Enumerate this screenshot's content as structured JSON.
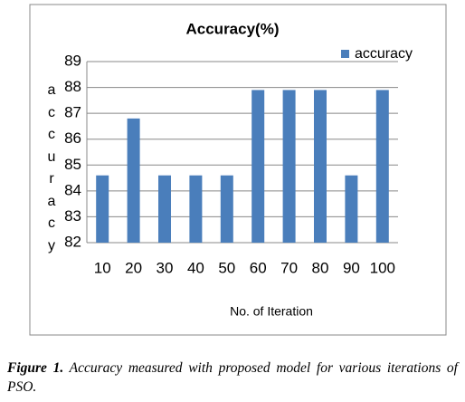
{
  "chart_data": {
    "type": "bar",
    "title": "Accuracy(%)",
    "x_label": "No. of Iteration",
    "y_label": "accuracy",
    "categories": [
      "10",
      "20",
      "30",
      "40",
      "50",
      "60",
      "70",
      "80",
      "90",
      "100"
    ],
    "series": [
      {
        "name": "accuracy",
        "color": "#4a7ebb",
        "values": [
          84.6,
          86.8,
          84.6,
          84.6,
          84.6,
          87.9,
          87.9,
          87.9,
          84.6,
          87.9
        ]
      }
    ],
    "ylim": [
      82,
      89
    ],
    "yticks": [
      82,
      83,
      84,
      85,
      86,
      87,
      88,
      89
    ],
    "grid": true,
    "legend": "top-right"
  },
  "caption": {
    "label": "Figure 1.",
    "text": "Accuracy measured with proposed model for various iterations of PSO."
  }
}
